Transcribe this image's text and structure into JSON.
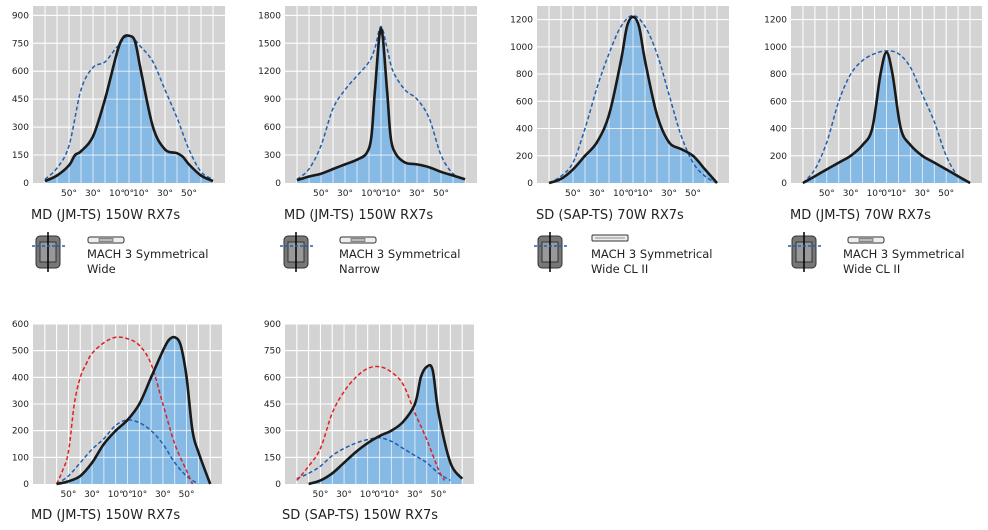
{
  "chart_data": [
    {
      "type": "area",
      "title": "MD (JM-TS) 150W RX7s",
      "description": [
        "MACH 3 Symmetrical",
        "Wide"
      ],
      "yticks": [
        0,
        150,
        300,
        450,
        600,
        750,
        900
      ],
      "ylim": [
        0,
        950
      ],
      "xtick_labels": [
        "50°",
        "30°",
        "10°",
        "0°",
        "10°",
        "30°",
        "50°"
      ],
      "series": [
        {
          "style": "solid",
          "color": "#1a1a1a",
          "fill": "#86b9e3",
          "x": [
            -70,
            -60,
            -50,
            -45,
            -40,
            -30,
            -20,
            -10,
            -5,
            0,
            5,
            10,
            20,
            30,
            40,
            45,
            50,
            60,
            70
          ],
          "y": [
            10,
            40,
            95,
            150,
            170,
            250,
            450,
            700,
            780,
            790,
            760,
            600,
            300,
            180,
            160,
            140,
            100,
            40,
            10
          ]
        },
        {
          "style": "dashed",
          "color": "#1f5fb0",
          "x": [
            -70,
            -60,
            -50,
            -40,
            -30,
            -20,
            -10,
            0,
            10,
            20,
            30,
            40,
            50,
            60,
            70
          ],
          "y": [
            20,
            80,
            200,
            500,
            620,
            650,
            730,
            790,
            730,
            650,
            500,
            350,
            180,
            60,
            20
          ]
        }
      ]
    },
    {
      "type": "area",
      "title": "MD (JM-TS) 150W RX7s",
      "description": [
        "MACH 3 Symmetrical",
        "Narrow"
      ],
      "yticks": [
        0,
        300,
        600,
        900,
        1200,
        1500,
        1800
      ],
      "ylim": [
        0,
        1900
      ],
      "xtick_labels": [
        "50°",
        "30°",
        "10°",
        "0°",
        "10°",
        "30°",
        "50°"
      ],
      "series": [
        {
          "style": "solid",
          "color": "#1a1a1a",
          "fill": "#86b9e3",
          "x": [
            -70,
            -60,
            -50,
            -40,
            -30,
            -20,
            -12,
            -8,
            -5,
            0,
            5,
            8,
            12,
            20,
            30,
            40,
            50,
            60,
            70
          ],
          "y": [
            30,
            70,
            100,
            150,
            200,
            250,
            320,
            500,
            1000,
            1660,
            1000,
            500,
            320,
            220,
            200,
            170,
            120,
            80,
            40
          ]
        },
        {
          "style": "dashed",
          "color": "#1f5fb0",
          "x": [
            -70,
            -60,
            -50,
            -40,
            -30,
            -20,
            -10,
            -5,
            0,
            5,
            10,
            20,
            30,
            40,
            50,
            60,
            70
          ],
          "y": [
            40,
            150,
            400,
            800,
            1000,
            1150,
            1300,
            1450,
            1680,
            1450,
            1200,
            1000,
            900,
            700,
            300,
            100,
            40
          ]
        }
      ]
    },
    {
      "type": "area",
      "title": "SD (SAP-TS) 70W RX7s",
      "description": [
        "MACH 3 Symmetrical",
        "Wide CL II"
      ],
      "yticks": [
        0,
        200,
        400,
        600,
        800,
        1000,
        1200
      ],
      "ylim": [
        0,
        1300
      ],
      "xtick_labels": [
        "50°",
        "30°",
        "10°",
        "0°",
        "10°",
        "30°",
        "50°"
      ],
      "series": [
        {
          "style": "solid",
          "color": "#1a1a1a",
          "fill": "#86b9e3",
          "x": [
            -70,
            -60,
            -50,
            -40,
            -30,
            -20,
            -10,
            -5,
            0,
            5,
            10,
            20,
            30,
            40,
            50,
            60,
            70
          ],
          "y": [
            0,
            30,
            100,
            200,
            300,
            500,
            900,
            1150,
            1220,
            1150,
            900,
            500,
            300,
            250,
            200,
            100,
            0
          ]
        },
        {
          "style": "dashed",
          "color": "#1f5fb0",
          "x": [
            -70,
            -60,
            -50,
            -40,
            -30,
            -20,
            -10,
            0,
            10,
            20,
            30,
            40,
            50,
            60,
            70
          ],
          "y": [
            0,
            50,
            150,
            400,
            700,
            950,
            1150,
            1230,
            1150,
            950,
            650,
            350,
            150,
            50,
            0
          ]
        }
      ]
    },
    {
      "type": "area",
      "title": "MD (JM-TS) 70W RX7s",
      "description": [
        "MACH 3 Symmetrical",
        "Wide CL II"
      ],
      "yticks": [
        0,
        200,
        400,
        600,
        800,
        1000,
        1200
      ],
      "ylim": [
        0,
        1300
      ],
      "xtick_labels": [
        "50°",
        "30°",
        "10°",
        "0°",
        "10°",
        "30°",
        "50°"
      ],
      "series": [
        {
          "style": "solid",
          "color": "#1a1a1a",
          "fill": "#86b9e3",
          "x": [
            -70,
            -60,
            -50,
            -40,
            -30,
            -20,
            -12,
            -5,
            0,
            5,
            12,
            20,
            30,
            40,
            50,
            60,
            70
          ],
          "y": [
            0,
            50,
            100,
            150,
            200,
            280,
            400,
            800,
            960,
            800,
            400,
            280,
            200,
            150,
            100,
            50,
            0
          ]
        },
        {
          "style": "dashed",
          "color": "#1f5fb0",
          "x": [
            -70,
            -60,
            -50,
            -40,
            -30,
            -20,
            -10,
            0,
            10,
            20,
            30,
            40,
            50,
            60,
            70
          ],
          "y": [
            0,
            100,
            300,
            600,
            800,
            900,
            950,
            970,
            950,
            850,
            650,
            450,
            200,
            50,
            0
          ]
        }
      ]
    },
    {
      "type": "area",
      "title": "MD (JM-TS) 150W RX7s",
      "description": [],
      "yticks": [
        0,
        100,
        200,
        300,
        400,
        500,
        600
      ],
      "ylim": [
        0,
        600
      ],
      "xtick_labels": [
        "50°",
        "30°",
        "10°",
        "0°",
        "10°",
        "30°",
        "50°"
      ],
      "series": [
        {
          "style": "solid",
          "color": "#1a1a1a",
          "fill": "#86b9e3",
          "x": [
            -60,
            -50,
            -40,
            -30,
            -20,
            -10,
            0,
            10,
            20,
            30,
            35,
            40,
            45,
            50,
            55,
            60,
            70
          ],
          "y": [
            0,
            10,
            30,
            80,
            150,
            200,
            240,
            300,
            400,
            500,
            540,
            550,
            520,
            400,
            200,
            120,
            0
          ]
        },
        {
          "style": "dashed",
          "color": "#1f5fb0",
          "x": [
            -60,
            -50,
            -40,
            -30,
            -20,
            -10,
            0,
            10,
            20,
            30,
            40,
            50,
            60
          ],
          "y": [
            0,
            30,
            80,
            130,
            170,
            220,
            240,
            230,
            200,
            150,
            80,
            30,
            0
          ]
        },
        {
          "style": "dashed",
          "color": "#e02020",
          "x": [
            -60,
            -55,
            -50,
            -45,
            -40,
            -35,
            -30,
            -20,
            -10,
            0,
            10,
            20,
            30,
            40,
            50,
            55
          ],
          "y": [
            0,
            50,
            120,
            300,
            400,
            450,
            490,
            530,
            550,
            545,
            520,
            450,
            300,
            150,
            50,
            0
          ]
        }
      ]
    },
    {
      "type": "area",
      "title": "SD (SAP-TS) 150W RX7s",
      "description": [],
      "yticks": [
        0,
        150,
        300,
        450,
        600,
        750,
        900
      ],
      "ylim": [
        0,
        900
      ],
      "xtick_labels": [
        "50°",
        "30°",
        "10°",
        "0°",
        "10°",
        "30°",
        "50°"
      ],
      "series": [
        {
          "style": "solid",
          "color": "#1a1a1a",
          "fill": "#86b9e3",
          "x": [
            -60,
            -50,
            -40,
            -30,
            -20,
            -10,
            0,
            10,
            20,
            30,
            35,
            40,
            45,
            50,
            60,
            70
          ],
          "y": [
            0,
            20,
            60,
            120,
            180,
            230,
            270,
            300,
            350,
            450,
            600,
            660,
            640,
            400,
            120,
            30
          ]
        },
        {
          "style": "dashed",
          "color": "#1f5fb0",
          "x": [
            -70,
            -60,
            -50,
            -40,
            -30,
            -20,
            -10,
            0,
            10,
            20,
            30,
            40,
            50,
            60
          ],
          "y": [
            30,
            60,
            100,
            160,
            200,
            230,
            250,
            260,
            240,
            200,
            160,
            120,
            60,
            20
          ]
        },
        {
          "style": "dashed",
          "color": "#e02020",
          "x": [
            -70,
            -60,
            -50,
            -40,
            -30,
            -20,
            -10,
            0,
            10,
            20,
            30,
            40,
            50,
            55
          ],
          "y": [
            20,
            100,
            200,
            400,
            520,
            600,
            650,
            660,
            630,
            560,
            400,
            250,
            80,
            20
          ]
        }
      ]
    }
  ]
}
